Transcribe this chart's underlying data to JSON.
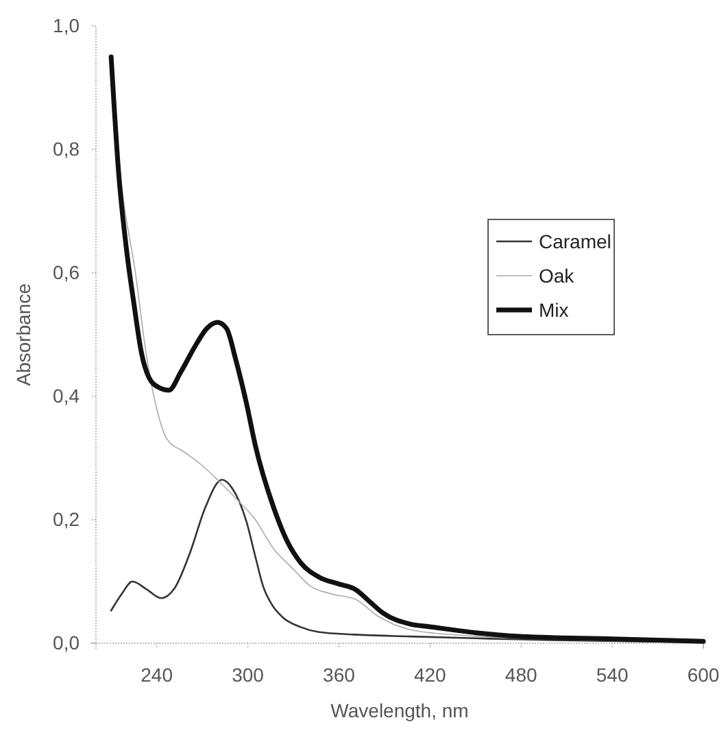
{
  "chart_data": {
    "type": "line",
    "xlabel": "Wavelength, nm",
    "ylabel": "Absorbance",
    "xlim": [
      200,
      600
    ],
    "xticks": [
      240,
      300,
      360,
      420,
      480,
      540,
      600
    ],
    "ylim": [
      0,
      1.0
    ],
    "yticks": [
      {
        "value": 0,
        "label": "0,0"
      },
      {
        "value": 0.2,
        "label": "0,2"
      },
      {
        "value": 0.4,
        "label": "0,4"
      },
      {
        "value": 0.6,
        "label": "0,6"
      },
      {
        "value": 0.8,
        "label": "0,8"
      },
      {
        "value": 1.0,
        "label": "1,0"
      }
    ],
    "legend": "right",
    "line_style": "solid",
    "marker": "none",
    "series": [
      {
        "name": "Caramel",
        "color": "#333333",
        "x": [
          210,
          217,
          224,
          233,
          243,
          252,
          262,
          272,
          283,
          290,
          299,
          305,
          310,
          316,
          323,
          335,
          347,
          370,
          407,
          450,
          500,
          550,
          600
        ],
        "values": [
          0.053,
          0.08,
          0.1,
          0.088,
          0.073,
          0.09,
          0.147,
          0.22,
          0.265,
          0.25,
          0.198,
          0.14,
          0.093,
          0.062,
          0.042,
          0.026,
          0.018,
          0.014,
          0.011,
          0.008,
          0.005,
          0.003,
          0.002
        ]
      },
      {
        "name": "Oak",
        "color": "#aaaaaa",
        "x": [
          210,
          217,
          226,
          233,
          240,
          247,
          258,
          269,
          280,
          292,
          305,
          317,
          330,
          341,
          355,
          371,
          385,
          407,
          440,
          479,
          540,
          600
        ],
        "values": [
          0.93,
          0.74,
          0.6,
          0.47,
          0.38,
          0.33,
          0.31,
          0.29,
          0.265,
          0.235,
          0.2,
          0.153,
          0.12,
          0.093,
          0.08,
          0.071,
          0.045,
          0.022,
          0.013,
          0.008,
          0.004,
          0.002
        ]
      },
      {
        "name": "Mix",
        "color": "#111111",
        "x": [
          210,
          215,
          220,
          225,
          230,
          235,
          241,
          248,
          256,
          265,
          273,
          280,
          286,
          292,
          299,
          305,
          317,
          326,
          335,
          347,
          360,
          371,
          380,
          389,
          407,
          419,
          450,
          479,
          540,
          600
        ],
        "values": [
          0.95,
          0.76,
          0.64,
          0.55,
          0.47,
          0.43,
          0.415,
          0.41,
          0.44,
          0.48,
          0.51,
          0.52,
          0.51,
          0.46,
          0.39,
          0.32,
          0.22,
          0.165,
          0.13,
          0.107,
          0.096,
          0.087,
          0.068,
          0.049,
          0.031,
          0.027,
          0.017,
          0.011,
          0.007,
          0.003
        ]
      }
    ]
  }
}
